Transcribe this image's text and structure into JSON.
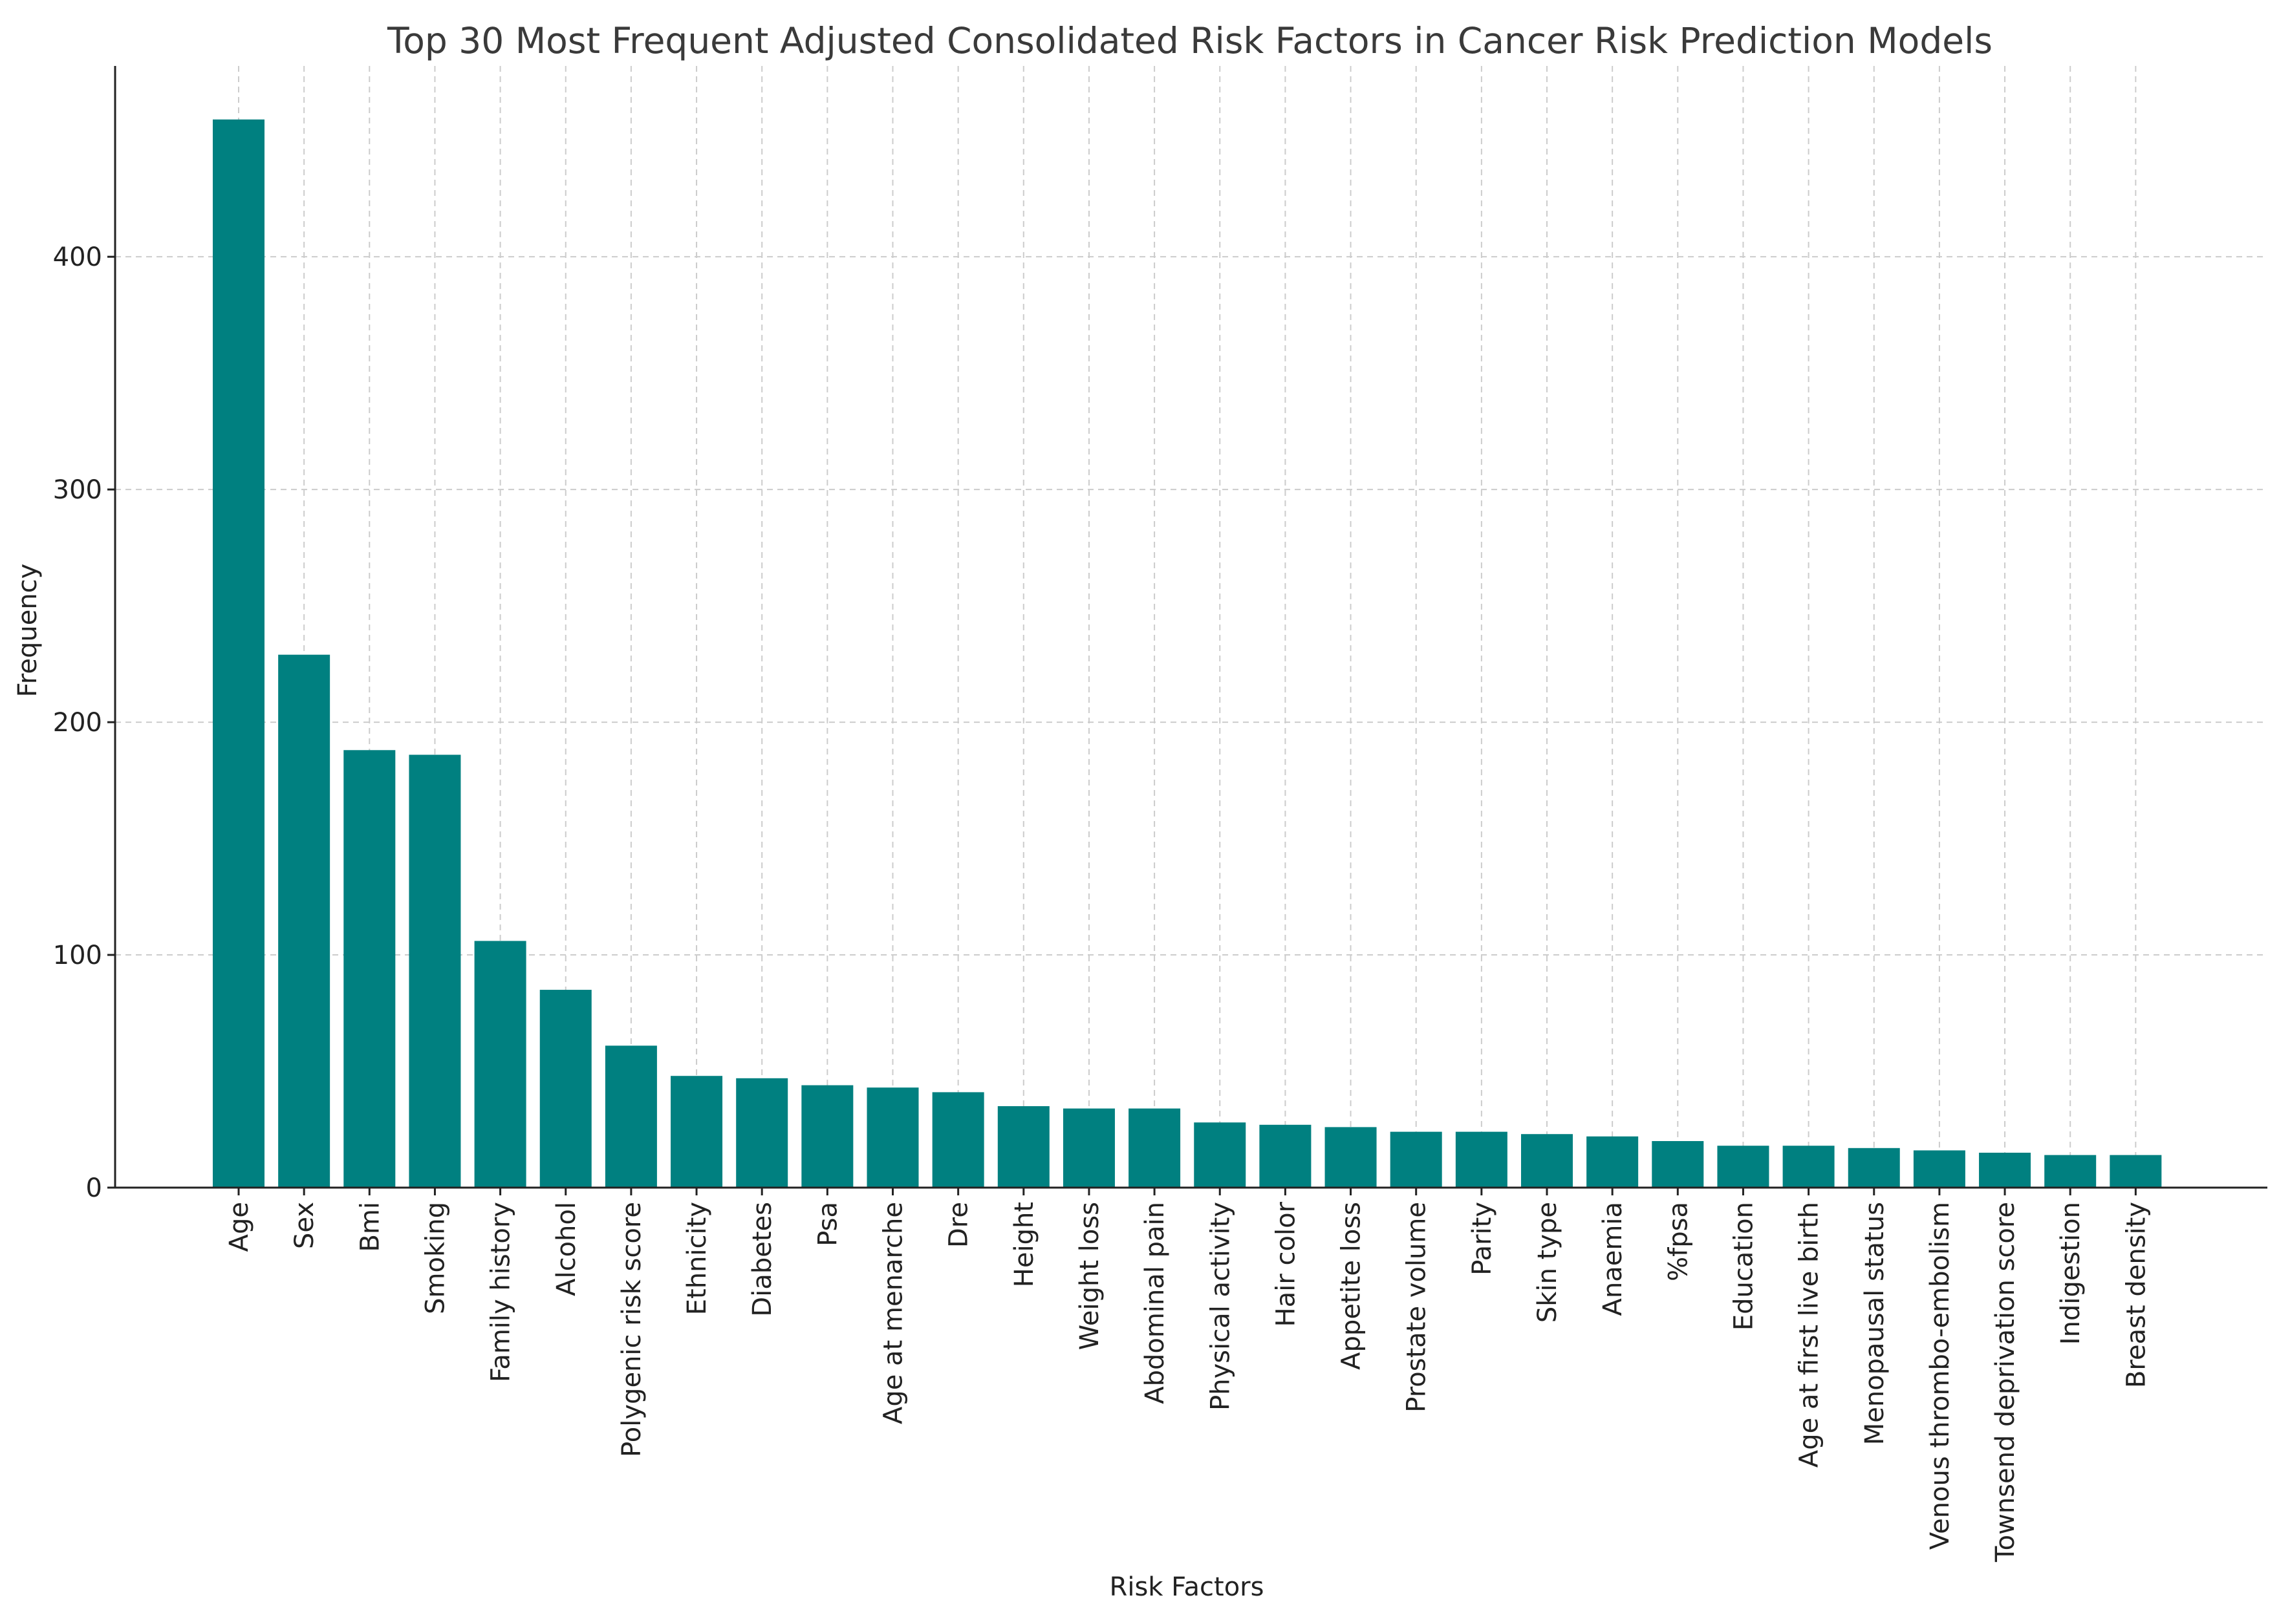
{
  "chart_data": {
    "type": "bar",
    "title": "Top 30 Most Frequent Adjusted Consolidated Risk Factors in Cancer Risk Prediction Models",
    "xlabel": "Risk Factors",
    "ylabel": "Frequency",
    "ylim": [
      0,
      482
    ],
    "yticks": [
      0,
      100,
      200,
      300,
      400
    ],
    "grid": true,
    "bar_color": "#008080",
    "categories": [
      "Age",
      "Sex",
      "Bmi",
      "Smoking",
      "Family history",
      "Alcohol",
      "Polygenic risk score",
      "Ethnicity",
      "Diabetes",
      "Psa",
      "Age at menarche",
      "Dre",
      "Height",
      "Weight loss",
      "Abdominal pain",
      "Physical activity",
      "Hair color",
      "Appetite loss",
      "Prostate volume",
      "Parity",
      "Skin type",
      "Anaemia",
      "%fpsa",
      "Education",
      "Age at first live birth",
      "Menopausal status",
      "Venous thrombo-embolism",
      "Townsend deprivation score",
      "Indigestion",
      "Breast density"
    ],
    "values": [
      459,
      229,
      188,
      186,
      106,
      85,
      61,
      48,
      47,
      44,
      43,
      41,
      35,
      34,
      34,
      28,
      27,
      26,
      24,
      24,
      23,
      22,
      20,
      18,
      18,
      17,
      16,
      15,
      14,
      14
    ]
  }
}
